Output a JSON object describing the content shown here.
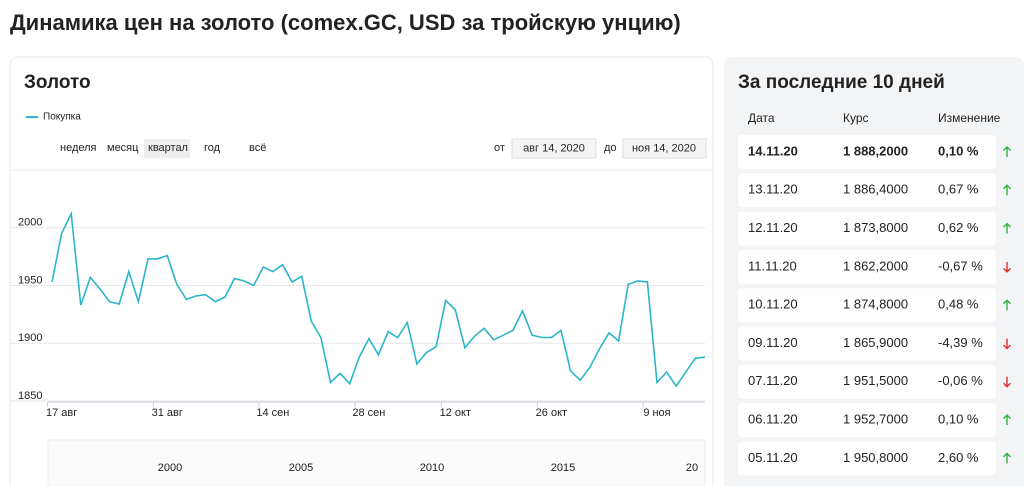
{
  "header": {
    "title": "Динамика цен на золото (comex.GC, USD за тройскую унцию)"
  },
  "chart_panel": {
    "title": "Золото",
    "periods": [
      "неделя",
      "месяц",
      "квартал",
      "год",
      "всё"
    ],
    "selected_period": 2,
    "from_label": "от",
    "from_date": "авг 14, 2020",
    "to_label": "до",
    "to_date": "ноя 14, 2020",
    "navigator_labels": [
      "2000",
      "2005",
      "2010",
      "2015",
      "20"
    ]
  },
  "chart_data": {
    "type": "line",
    "categories": [
      null,
      "17 авг",
      null,
      null,
      null,
      null,
      null,
      null,
      null,
      null,
      null,
      null,
      "31 авг",
      null,
      null,
      null,
      null,
      null,
      null,
      null,
      null,
      null,
      null,
      "14 сен",
      null,
      null,
      null,
      null,
      null,
      null,
      null,
      null,
      null,
      "28 сен",
      null,
      null,
      null,
      null,
      null,
      null,
      null,
      null,
      "12 окт",
      null,
      null,
      null,
      null,
      null,
      null,
      null,
      null,
      null,
      "26 окт",
      null,
      null,
      null,
      null,
      null,
      null,
      null,
      null,
      null,
      null,
      "9 ноя",
      null,
      null,
      null,
      null,
      null
    ],
    "series": [
      {
        "name": "Покупка",
        "color": "#2cb5c9",
        "values": [
          1953,
          1995,
          2012,
          1933,
          1957,
          1947,
          1936,
          1934,
          1962,
          1936,
          1973,
          1973,
          1976,
          1951,
          1938,
          1941,
          1942,
          1936,
          1940,
          1956,
          1954,
          1950,
          1966,
          1962,
          1968,
          1953,
          1958,
          1919,
          1905,
          1866,
          1874,
          1865,
          1888,
          1904,
          1890,
          1910,
          1905,
          1918,
          1882,
          1892,
          1897,
          1937,
          1929,
          1896,
          1906,
          1913,
          1903,
          1907,
          1911,
          1928,
          1907,
          1905,
          1905,
          1911,
          1876,
          1868,
          1879,
          1895,
          1909,
          1902,
          1951,
          1954,
          1953,
          1866,
          1875,
          1863,
          1875,
          1887,
          1888
        ]
      }
    ],
    "ylim": [
      1850,
      2050
    ],
    "yticks": [
      1850,
      1900,
      1950,
      2000
    ],
    "grid": true
  },
  "table": {
    "title": "За последние 10 дней",
    "headers": [
      "Дата",
      "Курс",
      "Изменение"
    ],
    "rows": [
      [
        "14.11.20",
        "1 888,2000",
        "0,10 %"
      ],
      [
        "13.11.20",
        "1 886,4000",
        "0,67 %"
      ],
      [
        "12.11.20",
        "1 873,8000",
        "0,62 %"
      ],
      [
        "11.11.20",
        "1 862,2000",
        "-0,67 %"
      ],
      [
        "10.11.20",
        "1 874,8000",
        "0,48 %"
      ],
      [
        "09.11.20",
        "1 865,9000",
        "-4,39 %"
      ],
      [
        "07.11.20",
        "1 951,5000",
        "-0,06 %"
      ],
      [
        "06.11.20",
        "1 952,7000",
        "0,10 %"
      ],
      [
        "05.11.20",
        "1 950,8000",
        "2,60 %"
      ]
    ],
    "directions": [
      "up",
      "up",
      "up",
      "down",
      "up",
      "down",
      "down",
      "up",
      "up"
    ]
  }
}
